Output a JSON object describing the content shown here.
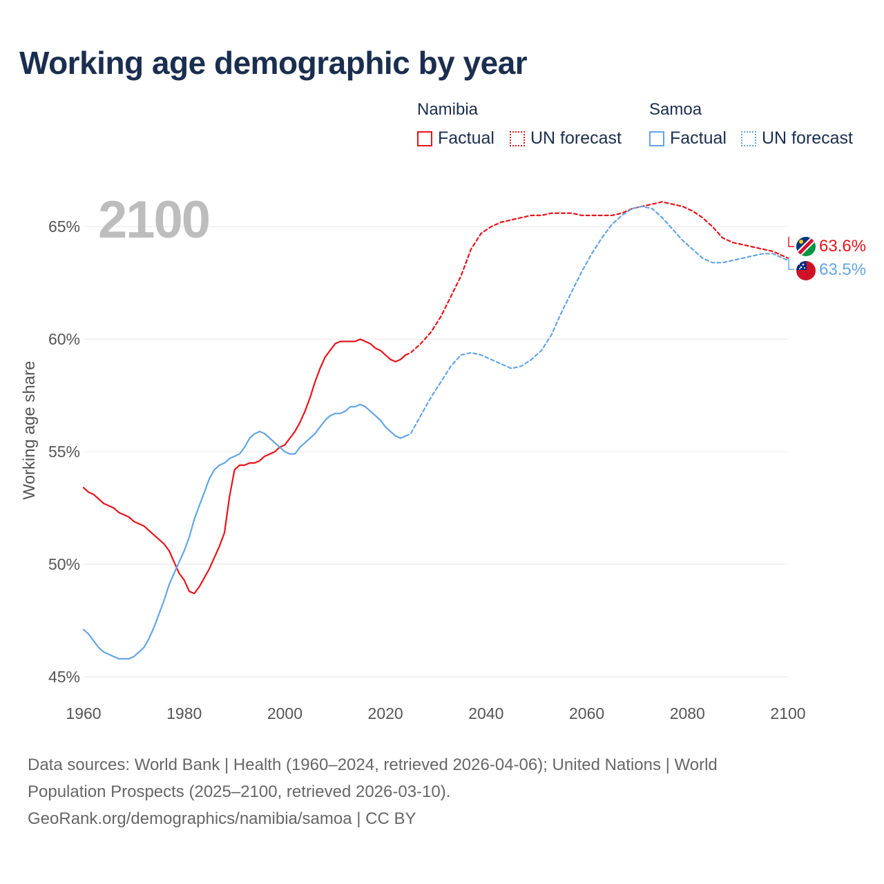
{
  "title": "Working age demographic by year",
  "legend": {
    "namibia": {
      "country": "Namibia",
      "factual": "Factual",
      "forecast": "UN forecast"
    },
    "samoa": {
      "country": "Samoa",
      "factual": "Factual",
      "forecast": "UN forecast"
    }
  },
  "colors": {
    "namibia": "#e8121a",
    "samoa": "#62a5e6",
    "title": "#1a2e4f",
    "grid": "#e6e6e6",
    "axis_text": "#555555",
    "year_watermark": "#bdbdbd"
  },
  "year_watermark": "2100",
  "end_labels": {
    "namibia": "63.6%",
    "samoa": "63.5%"
  },
  "flags": {
    "namibia": "namibia-flag-icon",
    "samoa": "samoa-flag-icon"
  },
  "footer": {
    "line1": "Data sources: World Bank | Health (1960–2024, retrieved 2026-04-06); United Nations | World",
    "line2": "Population Prospects (2025–2100, retrieved 2026-03-10).",
    "line3": "GeoRank.org/demographics/namibia/samoa | CC BY"
  },
  "chart_data": {
    "type": "line",
    "title": "Working age demographic by year",
    "xlabel": "",
    "ylabel": "Working age share",
    "xlim": [
      1960,
      2100
    ],
    "ylim": [
      45,
      67
    ],
    "x_ticks": [
      1960,
      1980,
      2000,
      2020,
      2040,
      2060,
      2080,
      2100
    ],
    "x_tick_labels": [
      "1960",
      "1980",
      "2000",
      "2020",
      "2040",
      "2060",
      "2080",
      "2100"
    ],
    "y_ticks": [
      45,
      50,
      55,
      60,
      65
    ],
    "y_tick_labels": [
      "45%",
      "50%",
      "55%",
      "60%",
      "65%"
    ],
    "series": [
      {
        "name": "Namibia",
        "segment": "Factual",
        "x": [
          1960,
          1961,
          1962,
          1963,
          1964,
          1965,
          1966,
          1967,
          1968,
          1969,
          1970,
          1971,
          1972,
          1973,
          1974,
          1975,
          1976,
          1977,
          1978,
          1979,
          1980,
          1981,
          1982,
          1983,
          1984,
          1985,
          1986,
          1987,
          1988,
          1989,
          1990,
          1991,
          1992,
          1993,
          1994,
          1995,
          1996,
          1997,
          1998,
          1999,
          2000,
          2001,
          2002,
          2003,
          2004,
          2005,
          2006,
          2007,
          2008,
          2009,
          2010,
          2011,
          2012,
          2013,
          2014,
          2015,
          2016,
          2017,
          2018,
          2019,
          2020,
          2021,
          2022,
          2023,
          2024
        ],
        "values": [
          53.4,
          53.2,
          53.1,
          52.9,
          52.7,
          52.6,
          52.5,
          52.3,
          52.2,
          52.1,
          51.9,
          51.8,
          51.7,
          51.5,
          51.3,
          51.1,
          50.9,
          50.6,
          50.1,
          49.6,
          49.3,
          48.8,
          48.7,
          49.0,
          49.4,
          49.8,
          50.3,
          50.8,
          51.4,
          53.0,
          54.2,
          54.4,
          54.4,
          54.5,
          54.5,
          54.6,
          54.8,
          54.9,
          55.0,
          55.2,
          55.3,
          55.6,
          55.9,
          56.3,
          56.8,
          57.4,
          58.1,
          58.7,
          59.2,
          59.5,
          59.8,
          59.9,
          59.9,
          59.9,
          59.9,
          60.0,
          59.9,
          59.8,
          59.6,
          59.5,
          59.3,
          59.1,
          59.0,
          59.1,
          59.3
        ]
      },
      {
        "name": "Namibia",
        "segment": "UN forecast",
        "x": [
          2024,
          2025,
          2027,
          2029,
          2031,
          2033,
          2035,
          2037,
          2039,
          2041,
          2043,
          2045,
          2047,
          2049,
          2051,
          2053,
          2055,
          2057,
          2059,
          2061,
          2063,
          2065,
          2067,
          2069,
          2071,
          2073,
          2075,
          2077,
          2079,
          2081,
          2083,
          2085,
          2087,
          2089,
          2091,
          2093,
          2095,
          2097,
          2099,
          2100
        ],
        "values": [
          59.3,
          59.4,
          59.8,
          60.3,
          61.0,
          61.9,
          62.8,
          64.0,
          64.7,
          65.0,
          65.2,
          65.3,
          65.4,
          65.5,
          65.5,
          65.6,
          65.6,
          65.6,
          65.5,
          65.5,
          65.5,
          65.5,
          65.6,
          65.8,
          65.9,
          66.0,
          66.1,
          66.0,
          65.9,
          65.7,
          65.4,
          65.0,
          64.5,
          64.3,
          64.2,
          64.1,
          64.0,
          63.9,
          63.7,
          63.6
        ]
      },
      {
        "name": "Samoa",
        "segment": "Factual",
        "x": [
          1960,
          1961,
          1962,
          1963,
          1964,
          1965,
          1966,
          1967,
          1968,
          1969,
          1970,
          1971,
          1972,
          1973,
          1974,
          1975,
          1976,
          1977,
          1978,
          1979,
          1980,
          1981,
          1982,
          1983,
          1984,
          1985,
          1986,
          1987,
          1988,
          1989,
          1990,
          1991,
          1992,
          1993,
          1994,
          1995,
          1996,
          1997,
          1998,
          1999,
          2000,
          2001,
          2002,
          2003,
          2004,
          2005,
          2006,
          2007,
          2008,
          2009,
          2010,
          2011,
          2012,
          2013,
          2014,
          2015,
          2016,
          2017,
          2018,
          2019,
          2020,
          2021,
          2022,
          2023,
          2024
        ],
        "values": [
          47.1,
          46.9,
          46.6,
          46.3,
          46.1,
          46.0,
          45.9,
          45.8,
          45.8,
          45.8,
          45.9,
          46.1,
          46.3,
          46.7,
          47.2,
          47.8,
          48.4,
          49.1,
          49.6,
          50.1,
          50.6,
          51.2,
          52.0,
          52.6,
          53.2,
          53.8,
          54.2,
          54.4,
          54.5,
          54.7,
          54.8,
          54.9,
          55.2,
          55.6,
          55.8,
          55.9,
          55.8,
          55.6,
          55.4,
          55.2,
          55.0,
          54.9,
          54.9,
          55.2,
          55.4,
          55.6,
          55.8,
          56.1,
          56.4,
          56.6,
          56.7,
          56.7,
          56.8,
          57.0,
          57.0,
          57.1,
          57.0,
          56.8,
          56.6,
          56.4,
          56.1,
          55.9,
          55.7,
          55.6,
          55.7
        ]
      },
      {
        "name": "Samoa",
        "segment": "UN forecast",
        "x": [
          2024,
          2025,
          2027,
          2029,
          2031,
          2033,
          2035,
          2037,
          2039,
          2041,
          2043,
          2045,
          2047,
          2049,
          2051,
          2053,
          2055,
          2057,
          2059,
          2061,
          2063,
          2065,
          2067,
          2069,
          2071,
          2073,
          2075,
          2077,
          2079,
          2081,
          2083,
          2085,
          2087,
          2089,
          2091,
          2093,
          2095,
          2097,
          2099,
          2100
        ],
        "values": [
          55.7,
          55.8,
          56.6,
          57.4,
          58.1,
          58.8,
          59.3,
          59.4,
          59.3,
          59.1,
          58.9,
          58.7,
          58.8,
          59.1,
          59.5,
          60.2,
          61.2,
          62.1,
          63.0,
          63.8,
          64.5,
          65.1,
          65.5,
          65.8,
          65.9,
          65.8,
          65.4,
          64.9,
          64.4,
          64.0,
          63.6,
          63.4,
          63.4,
          63.5,
          63.6,
          63.7,
          63.8,
          63.8,
          63.6,
          63.5
        ]
      }
    ]
  }
}
